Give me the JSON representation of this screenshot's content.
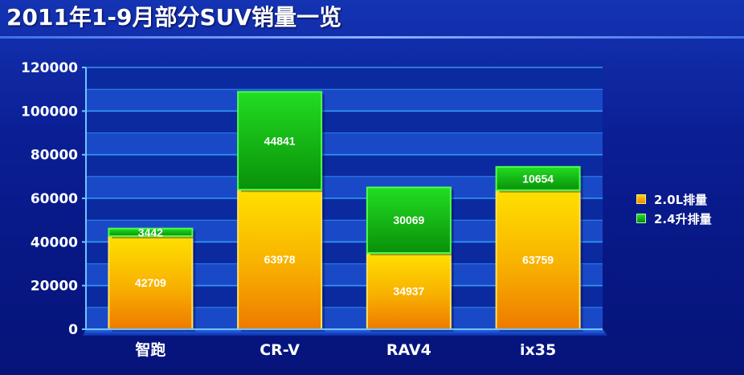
{
  "title": "2011年1-9月部分SUV销量一览",
  "colors": {
    "series_0": "#f5a300",
    "series_1": "#15b515",
    "plot_band_dark": "#0b2aa0",
    "plot_band_light": "#1a49c8",
    "gridline": "#3aa8ff"
  },
  "legend": {
    "position": "right",
    "items": [
      {
        "label": "2.0L排量"
      },
      {
        "label": "2.4升排量"
      }
    ]
  },
  "chart_data": {
    "type": "bar",
    "stacked": true,
    "categories": [
      "智跑",
      "CR-V",
      "RAV4",
      "ix35"
    ],
    "series": [
      {
        "name": "2.0L排量",
        "values": [
          42709,
          63978,
          34937,
          63759
        ]
      },
      {
        "name": "2.4升排量",
        "values": [
          3442,
          44841,
          30069,
          10654
        ]
      }
    ],
    "title": "2011年1-9月部分SUV销量一览",
    "xlabel": "",
    "ylabel": "",
    "ylim": [
      0,
      120000
    ],
    "yticks": [
      "0",
      "20000",
      "40000",
      "60000",
      "80000",
      "100000",
      "120000"
    ],
    "grid": true,
    "data_labels": true
  }
}
